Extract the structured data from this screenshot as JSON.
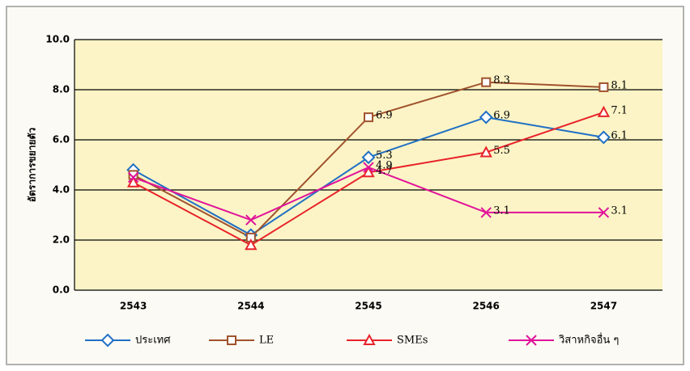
{
  "chart_data": {
    "type": "line",
    "y_label": "อัตราการขยายตัว",
    "categories": [
      "2543",
      "2544",
      "2545",
      "2546",
      "2547"
    ],
    "series": [
      {
        "name": "ประเทศ",
        "color": "#1f6fc4",
        "marker": "diamond",
        "values": [
          4.8,
          2.2,
          5.3,
          6.9,
          6.1
        ],
        "value_labels": [
          null,
          null,
          "5.3",
          "6.9",
          "6.1"
        ]
      },
      {
        "name": "LE",
        "color": "#a0522d",
        "marker": "square",
        "values": [
          4.6,
          2.1,
          6.9,
          8.3,
          8.1
        ],
        "value_labels": [
          null,
          null,
          "6.9",
          "8.3",
          "8.1"
        ]
      },
      {
        "name": "SMEs",
        "color": "#e8232a",
        "marker": "triangle",
        "values": [
          4.3,
          1.8,
          4.7,
          5.5,
          7.1
        ],
        "value_labels": [
          null,
          null,
          "4.7",
          "5.5",
          "7.1"
        ]
      },
      {
        "name": "วิสาหกิจอื่น ๆ",
        "color": "#e0139a",
        "marker": "cross",
        "values": [
          4.5,
          2.8,
          4.9,
          3.1,
          3.1
        ],
        "value_labels": [
          null,
          null,
          "4.9",
          "3.1",
          "3.1"
        ]
      }
    ],
    "ylim": [
      0,
      10
    ],
    "yticks": [
      {
        "value": 0,
        "label": "0.0"
      },
      {
        "value": 2,
        "label": "2.0"
      },
      {
        "value": 4,
        "label": "4.0"
      },
      {
        "value": 6,
        "label": "6.0"
      },
      {
        "value": 8,
        "label": "8.0"
      },
      {
        "value": 10,
        "label": "10.0"
      }
    ],
    "grid": true
  }
}
